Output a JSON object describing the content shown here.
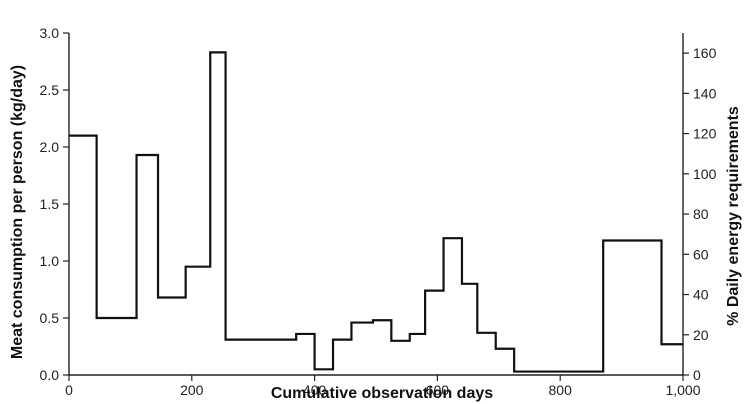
{
  "chart_data": {
    "type": "line",
    "step": "post",
    "x": [
      0,
      45,
      110,
      145,
      190,
      230,
      255,
      370,
      400,
      430,
      460,
      495,
      525,
      555,
      580,
      610,
      640,
      665,
      695,
      725,
      870,
      965,
      1000
    ],
    "y": [
      2.1,
      0.5,
      1.93,
      0.68,
      0.95,
      2.83,
      0.31,
      0.36,
      0.05,
      0.31,
      0.46,
      0.48,
      0.3,
      0.36,
      0.74,
      1.2,
      0.8,
      0.37,
      0.23,
      0.03,
      1.18,
      0.27,
      0.27
    ],
    "xlabel": "Cumulative observation days",
    "ylabel": "Meat consumption per person (kg/day)",
    "y2label": "% Daily energy requirements",
    "xlim": [
      0,
      1000
    ],
    "ylim": [
      0,
      3.0
    ],
    "y2lim": [
      0,
      170
    ],
    "xticks": [
      0,
      200,
      400,
      600,
      800,
      1000
    ],
    "xtick_labels": [
      "0",
      "200",
      "400",
      "600",
      "800",
      "1,000"
    ],
    "yticks": [
      0,
      0.5,
      1.0,
      1.5,
      2.0,
      2.5,
      3.0
    ],
    "ytick_labels": [
      "0.0",
      "0.5",
      "1.0",
      "1.5",
      "2.0",
      "2.5",
      "3.0"
    ],
    "y2ticks": [
      0,
      20,
      40,
      60,
      80,
      100,
      120,
      140,
      160
    ],
    "y2tick_labels": [
      "0",
      "20",
      "40",
      "60",
      "80",
      "100",
      "120",
      "140",
      "160"
    ],
    "grid": false,
    "colors": {
      "line": "#111111",
      "axis": "#222222",
      "text": "#222222"
    }
  }
}
